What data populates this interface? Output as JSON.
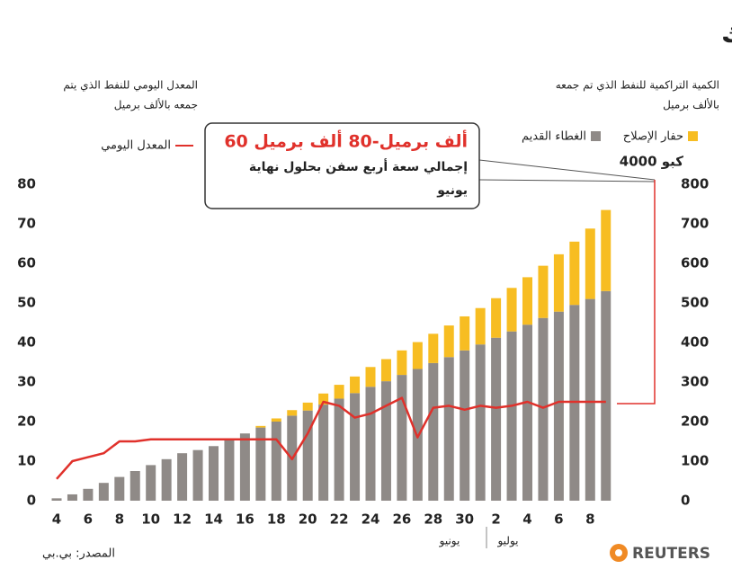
{
  "chart_data": {
    "type": "bar",
    "stacked": true,
    "title": "تركيب غطاء جديد لمنع تسرب النفط بخليج المكسيك",
    "y_label_lines": [
      "المعدل اليومي للنفط الذي يتم",
      "جمعه بالألف برميل"
    ],
    "y2_label_lines": [
      "الكمية التراكمية للنفط الذي تم جمعه",
      "بالألف برميل"
    ],
    "annotation": {
      "headline": "60 ألف برميل-80 ألف برميل",
      "lines": [
        "إجمالي سعة أربع سفن بحلول نهاية",
        "يونيو"
      ]
    },
    "corner_note": "كبو 4000",
    "months": [
      "يونيو",
      "يوليو"
    ],
    "source": "المصدر: بي.بي",
    "brand": "REUTERS",
    "categories": [
      "4",
      null,
      "6",
      null,
      "8",
      null,
      "10",
      null,
      "12",
      null,
      "14",
      null,
      "16",
      null,
      "18",
      null,
      "20",
      null,
      "22",
      null,
      "24",
      null,
      "26",
      null,
      "28",
      null,
      "30",
      null,
      "2",
      null,
      "4",
      null,
      "6",
      null,
      "8",
      null
    ],
    "series": [
      {
        "name": "الغطاء القديم",
        "color": "#8f8a87",
        "axis": "y2",
        "values": [
          6,
          16,
          30,
          45,
          60,
          75,
          90,
          105,
          120,
          128,
          138,
          155,
          170,
          185,
          200,
          215,
          228,
          243,
          258,
          272,
          288,
          302,
          318,
          333,
          348,
          363,
          380,
          395,
          412,
          428,
          445,
          462,
          478,
          495,
          510,
          530
        ]
      },
      {
        "name": "حفار الإصلاح",
        "color": "#f7bd22",
        "axis": "y2",
        "values": [
          0,
          0,
          0,
          0,
          0,
          0,
          0,
          0,
          0,
          0,
          0,
          0,
          0,
          4,
          8,
          14,
          20,
          28,
          35,
          42,
          50,
          56,
          62,
          68,
          74,
          80,
          86,
          92,
          100,
          110,
          120,
          132,
          145,
          160,
          178,
          205
        ]
      },
      {
        "name": "المعدل اليومي",
        "color": "#e0312b",
        "type": "line",
        "values": [
          5.5,
          10,
          11,
          12,
          15,
          15,
          15.5,
          15.5,
          15.5,
          15.5,
          15.5,
          15.5,
          15.5,
          15.5,
          15.5,
          10.5,
          17,
          25,
          24,
          21,
          22,
          24,
          26,
          16,
          23.5,
          24,
          23,
          24,
          23.5,
          24,
          25,
          23.5,
          25,
          25,
          25,
          25
        ]
      }
    ],
    "ylim": [
      0,
      80
    ],
    "yticks": [
      0,
      10,
      20,
      30,
      40,
      50,
      60,
      70,
      80
    ],
    "y2lim": [
      0,
      800
    ],
    "y2ticks": [
      0,
      100,
      200,
      300,
      400,
      500,
      600,
      700,
      800
    ],
    "grid": false
  }
}
